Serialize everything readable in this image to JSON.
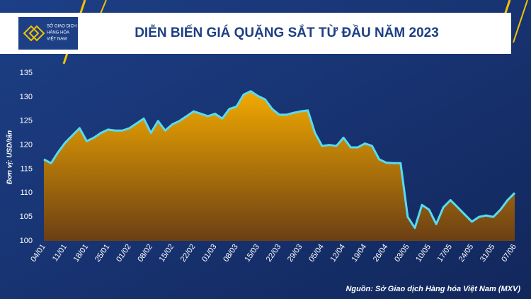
{
  "logo": [
    "SỞ GIAO DỊCH",
    "HÀNG HÓA",
    "VIỆT NAM"
  ],
  "chart_data": {
    "type": "area",
    "title": "DIỄN BIẾN GIÁ QUẶNG SẮT TỪ ĐẦU NĂM 2023",
    "y_label": "Đơn vị: USD/tấn",
    "source": "Nguồn: Sở Giao dịch Hàng hóa Việt Nam (MXV)",
    "categories": [
      "04/01",
      null,
      null,
      "11/01",
      null,
      null,
      "18/01",
      null,
      null,
      "25/01",
      null,
      null,
      "01/02",
      null,
      null,
      "08/02",
      null,
      null,
      "15/02",
      null,
      null,
      "22/02",
      null,
      null,
      "01/03",
      null,
      null,
      "08/03",
      null,
      null,
      "15/03",
      null,
      null,
      "22/03",
      null,
      null,
      "29/03",
      null,
      null,
      "05/04",
      null,
      null,
      "12/04",
      null,
      null,
      "19/04",
      null,
      null,
      "26/04",
      null,
      null,
      "03/05",
      null,
      null,
      "10/05",
      null,
      null,
      "17/05",
      null,
      null,
      "24/05",
      null,
      null,
      "31/05",
      null,
      null,
      "07/06"
    ],
    "values": [
      117,
      116.2,
      118.5,
      120.5,
      122,
      123.5,
      120.8,
      121.5,
      122.5,
      123.2,
      123,
      123,
      123.5,
      124.5,
      125.5,
      122.5,
      125,
      123,
      124.3,
      125,
      126,
      127,
      126.5,
      126,
      126.5,
      125.5,
      127.5,
      128,
      130.5,
      131.2,
      130.2,
      129.5,
      127.5,
      126.3,
      126.3,
      126.7,
      127,
      127.2,
      122.5,
      119.8,
      120,
      119.8,
      121.5,
      119.5,
      119.5,
      120.3,
      119.8,
      117,
      116.3,
      116.2,
      116.2,
      105,
      102.7,
      107.5,
      106.5,
      103.5,
      107,
      108.5,
      107,
      105.5,
      104,
      105,
      105.3,
      105,
      106.5,
      108.5,
      110
    ],
    "color": "#56dcf2",
    "fill_top": "#f2aa00",
    "fill_bottom": "#6b3f14",
    "ylim": [
      100,
      135
    ],
    "yticks": [
      100,
      105,
      110,
      115,
      120,
      125,
      130,
      135
    ],
    "grid": false
  }
}
